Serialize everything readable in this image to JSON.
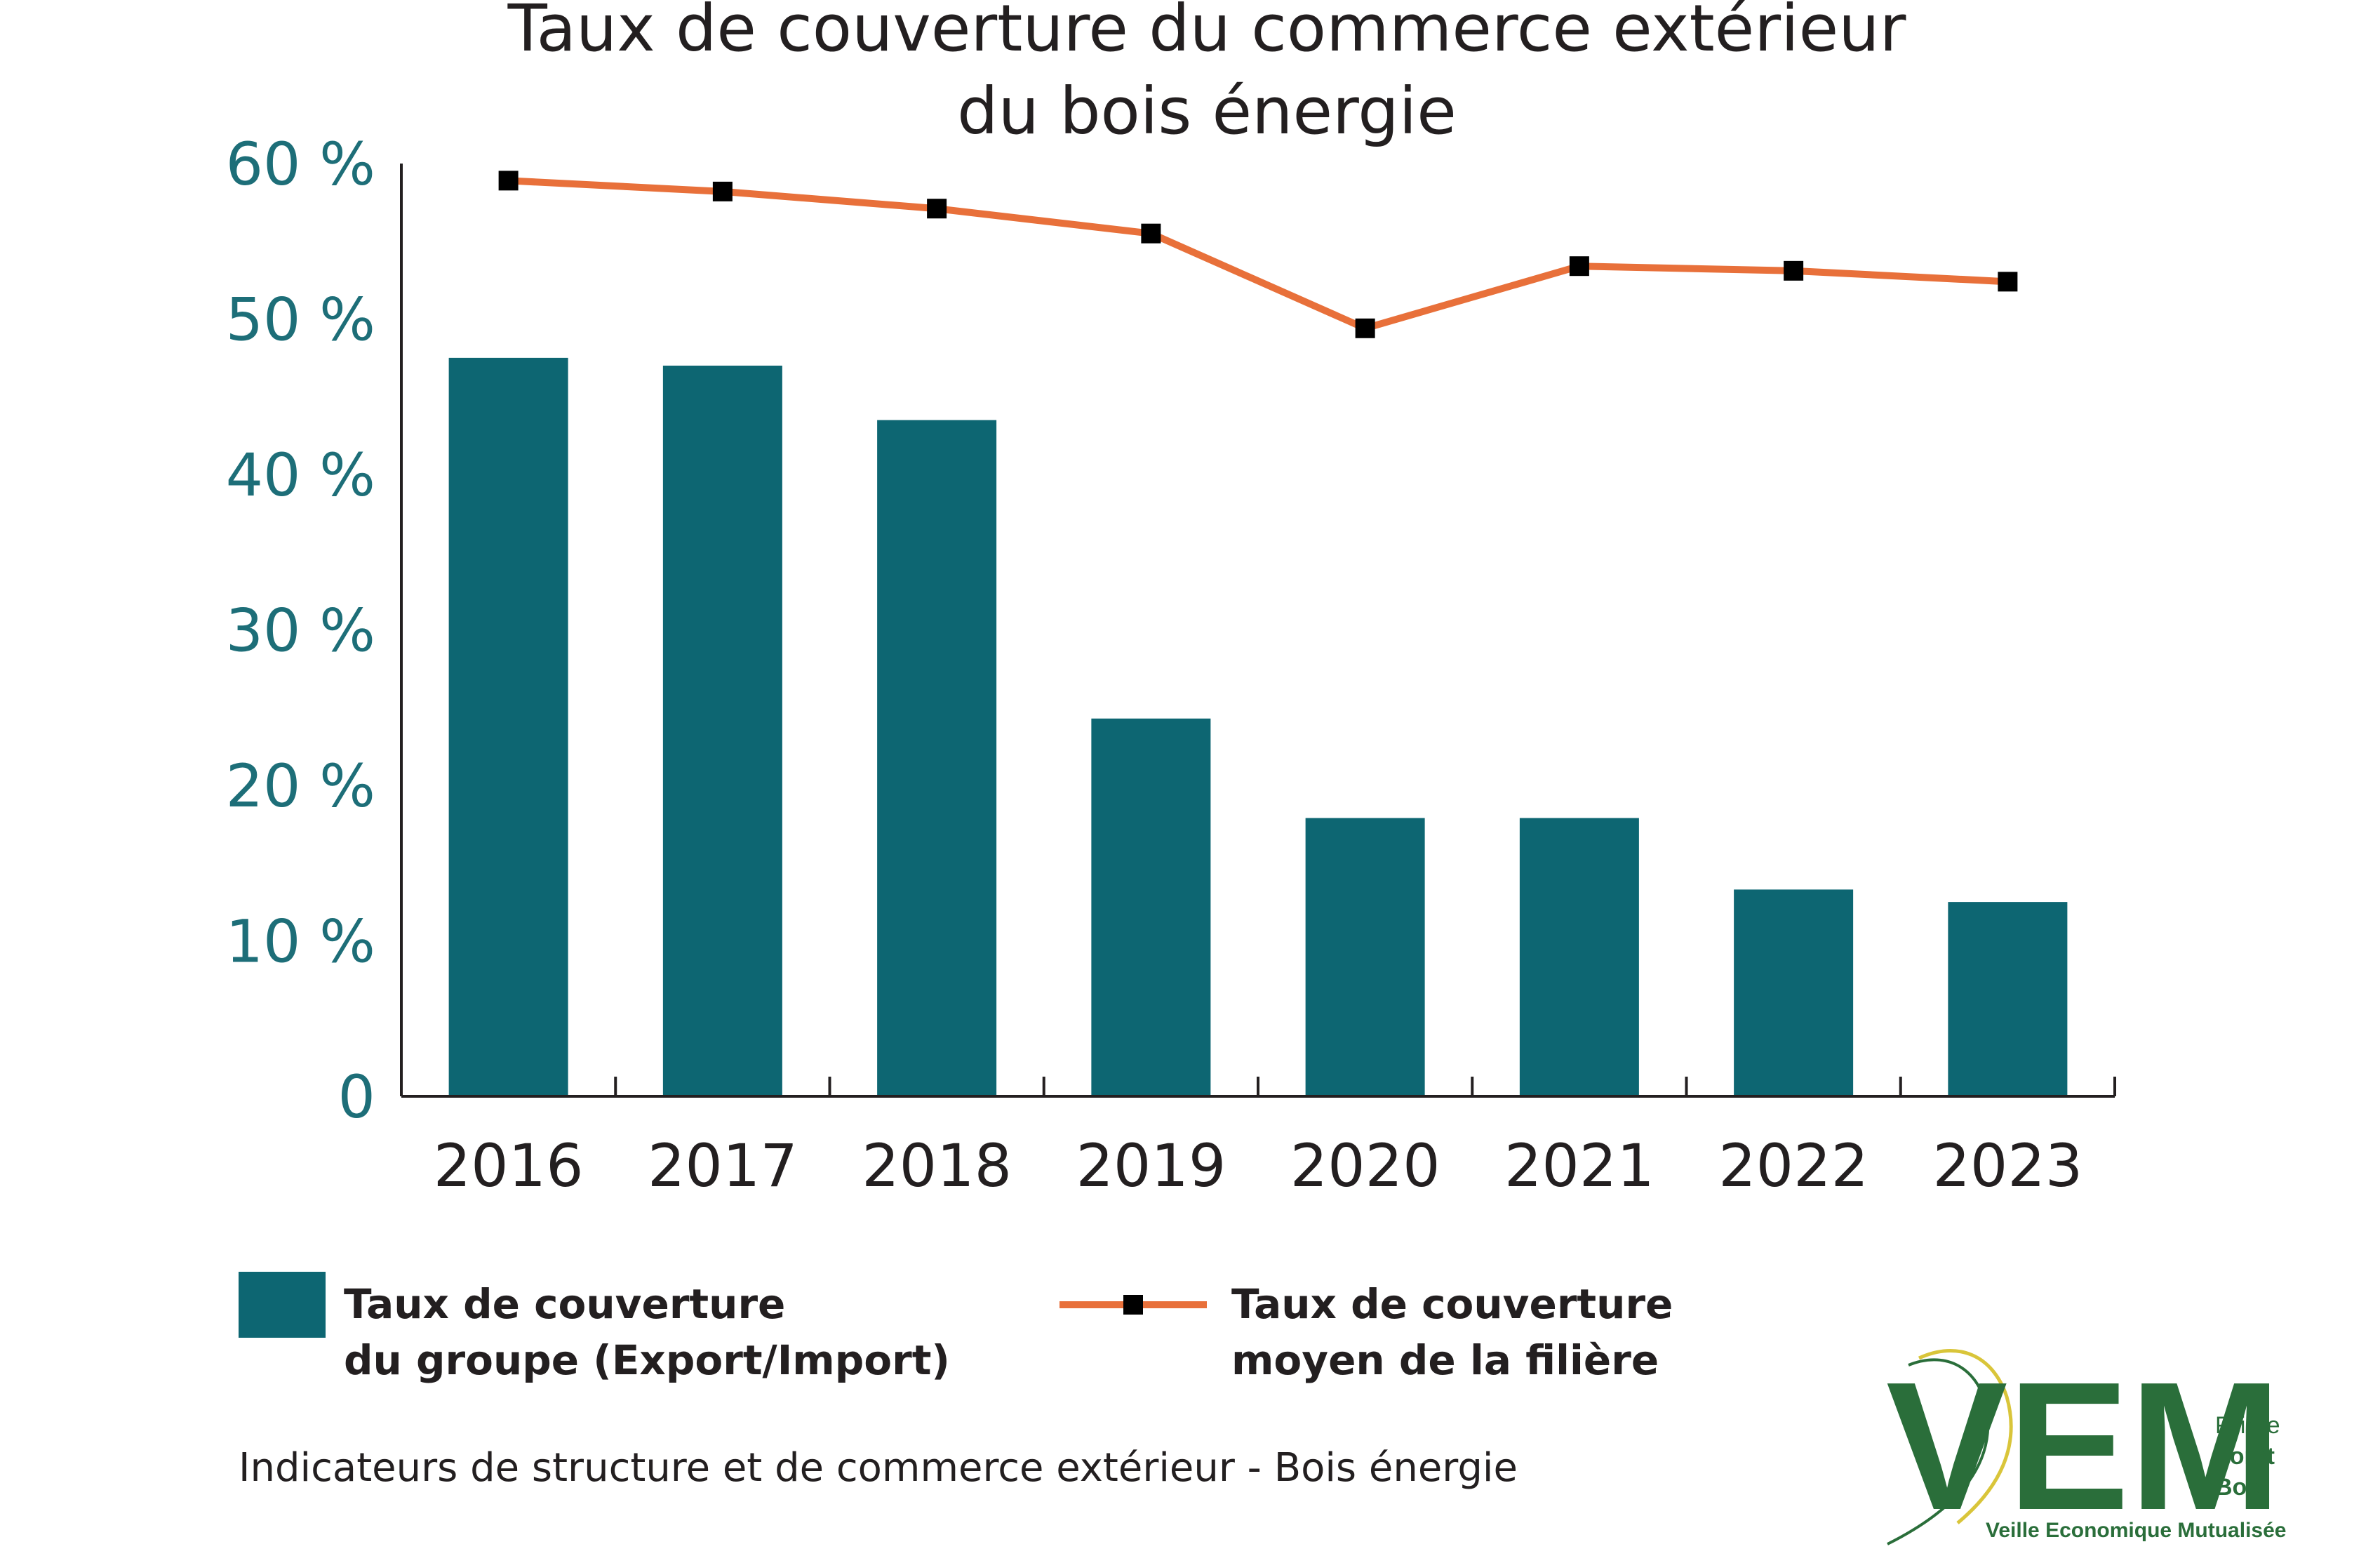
{
  "chart_data": {
    "type": "bar",
    "title": [
      "Taux de couverture du commerce extérieur",
      "du bois énergie"
    ],
    "categories": [
      "2016",
      "2017",
      "2018",
      "2019",
      "2020",
      "2021",
      "2022",
      "2023"
    ],
    "series": [
      {
        "name": "Taux de couverture du groupe (Export/Import)",
        "kind": "bar",
        "color": "#0d6672",
        "values": [
          47.5,
          47.0,
          43.5,
          24.3,
          17.9,
          17.9,
          13.3,
          12.5
        ]
      },
      {
        "name": "Taux de couverture moyen de la filière",
        "kind": "line",
        "color": "#e8703a",
        "marker_color": "#000000",
        "values": [
          58.9,
          58.2,
          57.1,
          55.5,
          49.4,
          53.4,
          53.1,
          52.4
        ]
      }
    ],
    "yticks": [
      "0",
      "10 %",
      "20 %",
      "30 %",
      "40 %",
      "50 %",
      "60 %"
    ],
    "ylim": [
      0,
      60
    ],
    "xlabel": "",
    "ylabel": "",
    "grid": false,
    "legend": [
      {
        "label_lines": [
          "Taux de couverture",
          "du groupe (Export/Import)"
        ],
        "type": "bar"
      },
      {
        "label_lines": [
          "Taux de couverture",
          "moyen de la filière"
        ],
        "type": "line"
      }
    ],
    "legend_position": "bottom"
  },
  "caption": "Indicateurs de structure et de commerce extérieur - Bois énergie",
  "logo": {
    "letters": "VEM",
    "side_lines": [
      "Filière",
      "Forêt",
      "Bois"
    ],
    "subtitle": "Veille Economique Mutualisée",
    "color_green": "#2a6e3a",
    "color_yellow": "#d9c53a"
  }
}
